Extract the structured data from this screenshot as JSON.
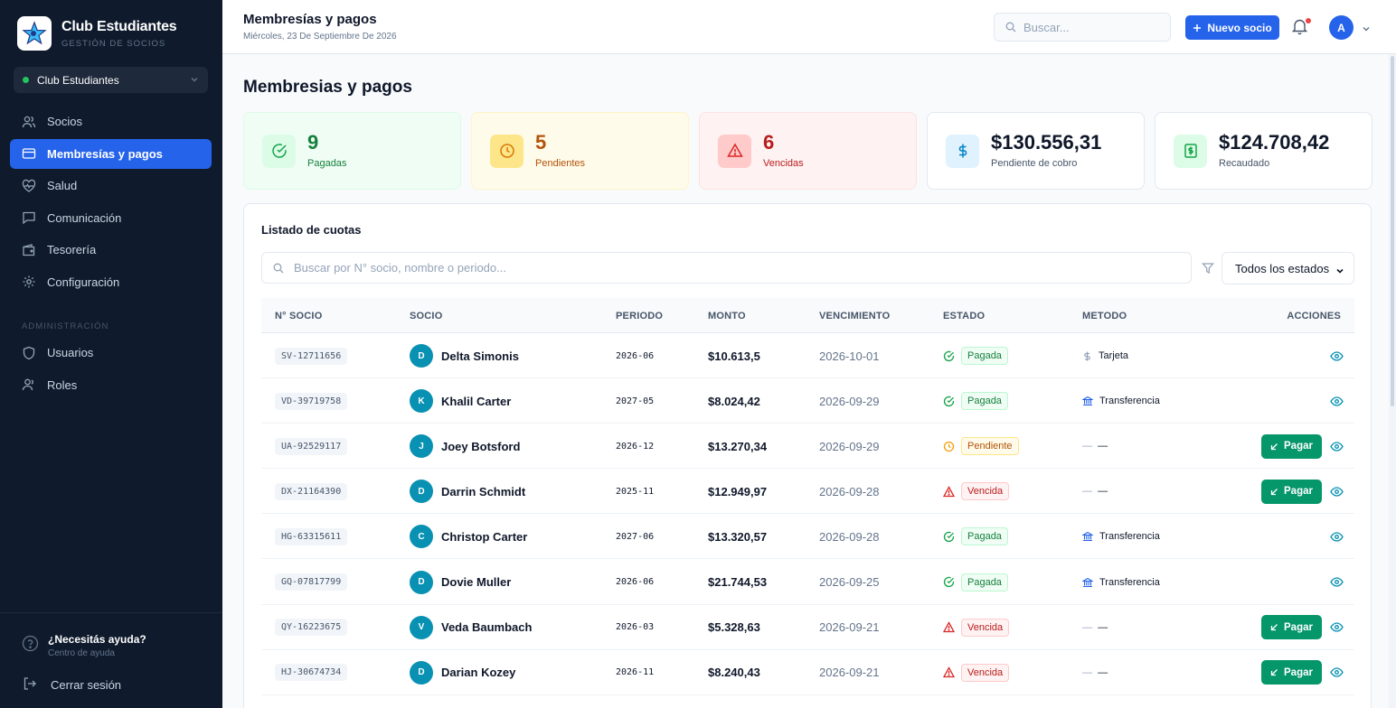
{
  "app": {
    "name": "Club Estudiantes",
    "subtitle": "GESTIÓN DE SOCIOS",
    "club_selector": "Club Estudiantes"
  },
  "sidebar": {
    "items": [
      {
        "label": "Socios",
        "icon": "users-icon"
      },
      {
        "label": "Membresías y pagos",
        "icon": "credit-card-icon",
        "active": true
      },
      {
        "label": "Salud",
        "icon": "heart-pulse-icon"
      },
      {
        "label": "Comunicación",
        "icon": "message-icon"
      },
      {
        "label": "Tesorería",
        "icon": "wallet-icon"
      },
      {
        "label": "Configuración",
        "icon": "gear-icon"
      }
    ],
    "admin_section": "ADMINISTRACIÓN",
    "admin_items": [
      {
        "label": "Usuarios",
        "icon": "shield-icon"
      },
      {
        "label": "Roles",
        "icon": "user-icon"
      }
    ],
    "help_title": "¿Necesitás ayuda?",
    "help_subtitle": "Centro de ayuda",
    "logout": "Cerrar sesión"
  },
  "header": {
    "title": "Membresías y pagos",
    "date": "Miércoles, 23 De Septiembre De 2026",
    "search_placeholder": "Buscar...",
    "new_button": "Nuevo socio",
    "avatar": "A"
  },
  "page": {
    "title": "Membresias y pagos"
  },
  "stats": [
    {
      "value": "9",
      "label": "Pagadas",
      "kind": "paid",
      "color": "#15803d"
    },
    {
      "value": "5",
      "label": "Pendientes",
      "kind": "pending",
      "color": "#b45309"
    },
    {
      "value": "6",
      "label": "Vencidas",
      "kind": "overdue",
      "color": "#b91c1c"
    },
    {
      "value": "$130.556,31",
      "label": "Pendiente de cobro",
      "kind": "receivable",
      "color": "#0f172a"
    },
    {
      "value": "$124.708,42",
      "label": "Recaudado",
      "kind": "collected",
      "color": "#0f172a"
    }
  ],
  "table": {
    "title": "Listado de cuotas",
    "search_placeholder": "Buscar por N° socio, nombre o periodo...",
    "status_filter": "Todos los estados",
    "columns": [
      "N° SOCIO",
      "SOCIO",
      "PERIODO",
      "MONTO",
      "VENCIMIENTO",
      "ESTADO",
      "METODO",
      "ACCIONES"
    ],
    "pay_label": "Pagar",
    "rows": [
      {
        "id": "SV-12711656",
        "initial": "D",
        "name": "Delta Simonis",
        "period": "2026-06",
        "amount": "$10.613,5",
        "due": "2026-10-01",
        "status": "Pagada",
        "method": "Tarjeta",
        "method_icon": "dollar-icon"
      },
      {
        "id": "VD-39719758",
        "initial": "K",
        "name": "Khalil Carter",
        "period": "2027-05",
        "amount": "$8.024,42",
        "due": "2026-09-29",
        "status": "Pagada",
        "method": "Transferencia",
        "method_icon": "bank-icon"
      },
      {
        "id": "UA-92529117",
        "initial": "J",
        "name": "Joey Botsford",
        "period": "2026-12",
        "amount": "$13.270,34",
        "due": "2026-09-29",
        "status": "Pendiente",
        "method": "—",
        "method_icon": "dash-icon"
      },
      {
        "id": "DX-21164390",
        "initial": "D",
        "name": "Darrin Schmidt",
        "period": "2025-11",
        "amount": "$12.949,97",
        "due": "2026-09-28",
        "status": "Vencida",
        "method": "—",
        "method_icon": "dash-icon"
      },
      {
        "id": "HG-63315611",
        "initial": "C",
        "name": "Christop Carter",
        "period": "2027-06",
        "amount": "$13.320,57",
        "due": "2026-09-28",
        "status": "Pagada",
        "method": "Transferencia",
        "method_icon": "bank-icon"
      },
      {
        "id": "GQ-07817799",
        "initial": "D",
        "name": "Dovie Muller",
        "period": "2026-06",
        "amount": "$21.744,53",
        "due": "2026-09-25",
        "status": "Pagada",
        "method": "Transferencia",
        "method_icon": "bank-icon"
      },
      {
        "id": "QY-16223675",
        "initial": "V",
        "name": "Veda Baumbach",
        "period": "2026-03",
        "amount": "$5.328,63",
        "due": "2026-09-21",
        "status": "Vencida",
        "method": "—",
        "method_icon": "dash-icon"
      },
      {
        "id": "HJ-30674734",
        "initial": "D",
        "name": "Darian Kozey",
        "period": "2026-11",
        "amount": "$8.240,43",
        "due": "2026-09-21",
        "status": "Vencida",
        "method": "—",
        "method_icon": "dash-icon"
      }
    ]
  }
}
